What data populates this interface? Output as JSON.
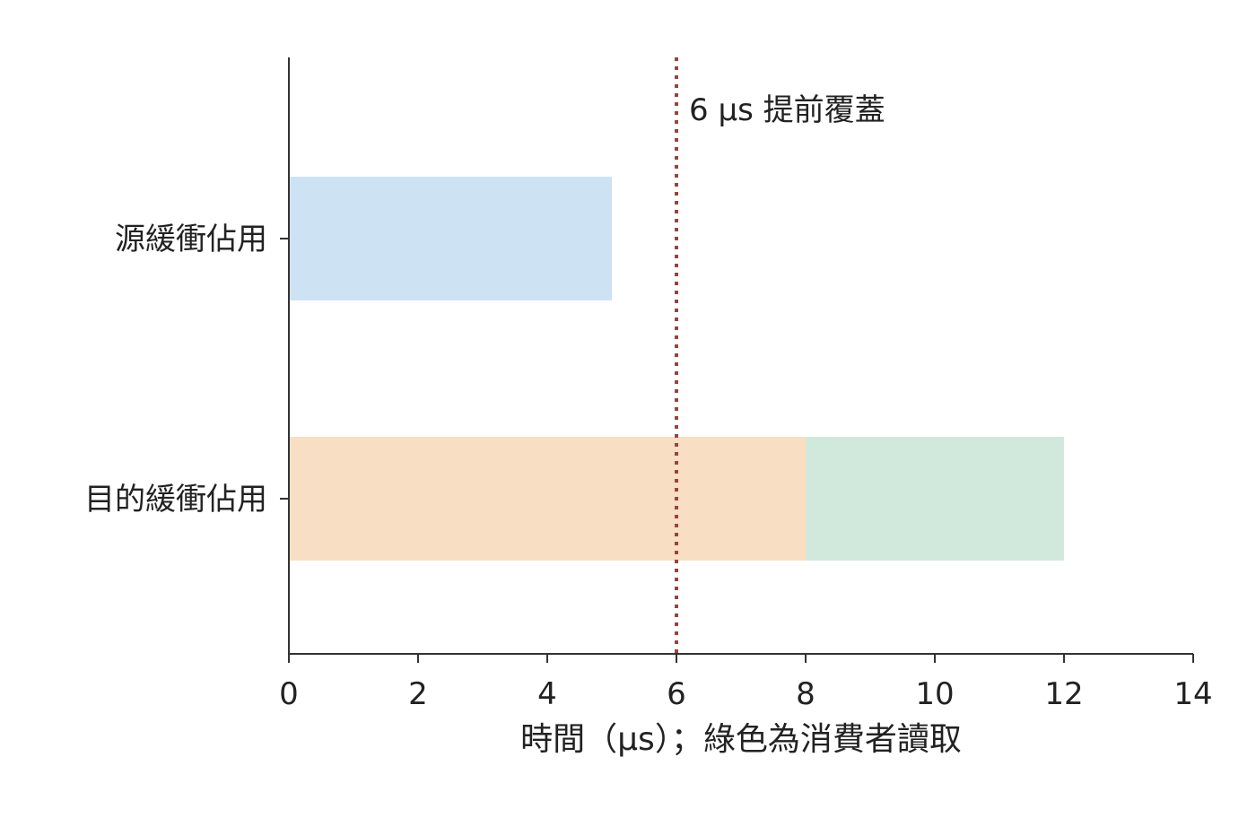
{
  "chart_data": {
    "type": "bar",
    "orientation": "horizontal",
    "categories": [
      "源緩衝佔用",
      "目的緩衝佔用"
    ],
    "segments": [
      {
        "category": "源緩衝佔用",
        "start": 0,
        "end": 5,
        "color": "#cde2f3"
      },
      {
        "category": "目的緩衝佔用",
        "start": 0,
        "end": 8,
        "color": "#f8dec2"
      },
      {
        "category": "目的緩衝佔用",
        "start": 8,
        "end": 12,
        "color": "#d1e8dc"
      }
    ],
    "xlabel": "時間（μs）；綠色為消費者讀取",
    "xlim": [
      0,
      14
    ],
    "xticks": [
      "0",
      "2",
      "4",
      "6",
      "8",
      "10",
      "12",
      "14"
    ],
    "vline": {
      "x": 6,
      "style": "dotted",
      "color": "#a0403a",
      "label": "6 μs 提前覆蓋"
    },
    "grid": false,
    "legend": "none"
  }
}
